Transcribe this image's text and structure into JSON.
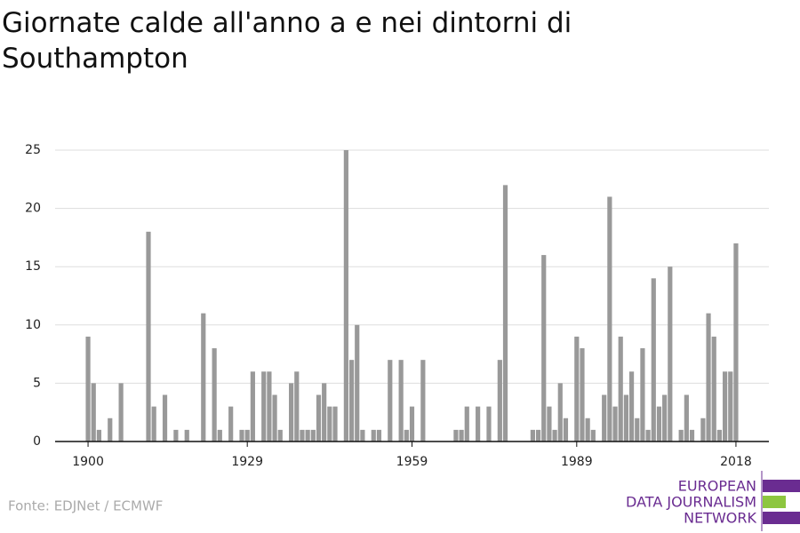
{
  "chart_data": {
    "type": "bar",
    "title": "Giornate calde all'anno a e nei dintorni di Southampton",
    "source": "Fonte: EDJNet / ECMWF",
    "logo": [
      "EUROPEAN",
      "DATA JOURNALISM",
      "NETWORK"
    ],
    "color": "#999999",
    "grid": true,
    "x": [
      1900,
      1901,
      1902,
      1903,
      1904,
      1905,
      1906,
      1907,
      1908,
      1909,
      1910,
      1911,
      1912,
      1913,
      1914,
      1915,
      1916,
      1917,
      1918,
      1919,
      1920,
      1921,
      1922,
      1923,
      1924,
      1925,
      1926,
      1927,
      1928,
      1929,
      1930,
      1931,
      1932,
      1933,
      1934,
      1935,
      1936,
      1937,
      1938,
      1939,
      1940,
      1941,
      1942,
      1943,
      1944,
      1945,
      1946,
      1947,
      1948,
      1949,
      1950,
      1951,
      1952,
      1953,
      1954,
      1955,
      1956,
      1957,
      1958,
      1959,
      1960,
      1961,
      1962,
      1963,
      1964,
      1965,
      1966,
      1967,
      1968,
      1969,
      1970,
      1971,
      1972,
      1973,
      1974,
      1975,
      1976,
      1977,
      1978,
      1979,
      1980,
      1981,
      1982,
      1983,
      1984,
      1985,
      1986,
      1987,
      1988,
      1989,
      1990,
      1991,
      1992,
      1993,
      1994,
      1995,
      1996,
      1997,
      1998,
      1999,
      2000,
      2001,
      2002,
      2003,
      2004,
      2005,
      2006,
      2007,
      2008,
      2009,
      2010,
      2011,
      2012,
      2013,
      2014,
      2015,
      2016,
      2017,
      2018
    ],
    "values": [
      9,
      5,
      1,
      0,
      2,
      0,
      5,
      0,
      0,
      0,
      0,
      18,
      3,
      0,
      4,
      0,
      1,
      0,
      1,
      0,
      0,
      11,
      0,
      8,
      1,
      0,
      3,
      0,
      1,
      1,
      6,
      0,
      6,
      6,
      4,
      1,
      0,
      5,
      6,
      1,
      1,
      1,
      4,
      5,
      3,
      3,
      0,
      25,
      7,
      10,
      1,
      0,
      1,
      1,
      0,
      7,
      0,
      7,
      1,
      3,
      0,
      7,
      0,
      0,
      0,
      0,
      0,
      1,
      1,
      3,
      0,
      3,
      0,
      3,
      0,
      7,
      22,
      0,
      0,
      0,
      0,
      1,
      1,
      16,
      3,
      1,
      5,
      2,
      0,
      9,
      8,
      2,
      1,
      0,
      4,
      21,
      3,
      9,
      4,
      6,
      2,
      8,
      1,
      14,
      3,
      4,
      15,
      0,
      1,
      4,
      1,
      0,
      2,
      11,
      9,
      1,
      6,
      6,
      17
    ],
    "xlim": [
      1894,
      2024
    ],
    "xticks": [
      1900,
      1929,
      1959,
      1989,
      2018
    ],
    "ylim": [
      0,
      25
    ],
    "yticks": [
      0,
      5,
      10,
      15,
      20,
      25
    ]
  }
}
